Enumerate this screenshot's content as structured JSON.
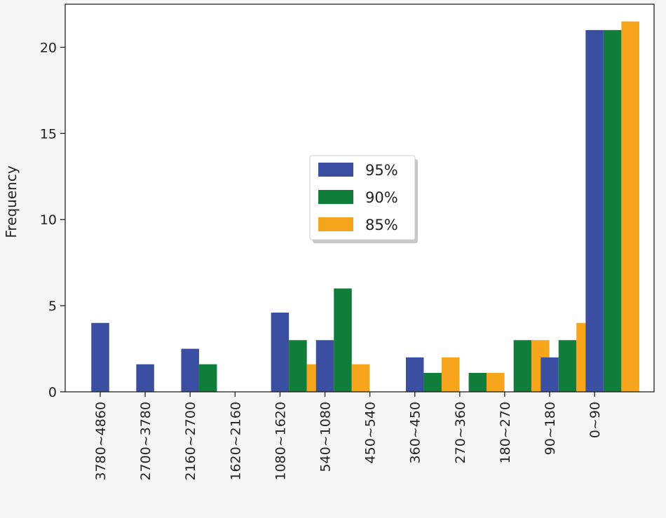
{
  "chart_data": {
    "type": "bar",
    "title": "",
    "xlabel": "",
    "ylabel": "Frequency",
    "ylim": [
      0,
      22.5
    ],
    "yticks": [
      0,
      5,
      10,
      15,
      20
    ],
    "categories": [
      "3780~4860",
      "2700~3780",
      "2160~2700",
      "1620~2160",
      "1080~1620",
      "540~1080",
      "450~540",
      "360~450",
      "270~360",
      "180~270",
      "90~180",
      "0~90"
    ],
    "series": [
      {
        "name": "95%",
        "color": "#3a4fa1",
        "values": [
          4,
          1.6,
          2.5,
          0,
          4.6,
          3,
          0,
          2,
          0,
          0,
          2,
          21
        ]
      },
      {
        "name": "90%",
        "color": "#117d3b",
        "values": [
          0,
          0,
          1.6,
          0,
          3,
          6,
          0,
          1.1,
          1.1,
          3,
          3,
          21
        ]
      },
      {
        "name": "85%",
        "color": "#f7a51c",
        "values": [
          0,
          0,
          0,
          0,
          1.6,
          1.6,
          0,
          2,
          1.1,
          3,
          4,
          21.5
        ]
      }
    ],
    "legend_position": "center"
  }
}
